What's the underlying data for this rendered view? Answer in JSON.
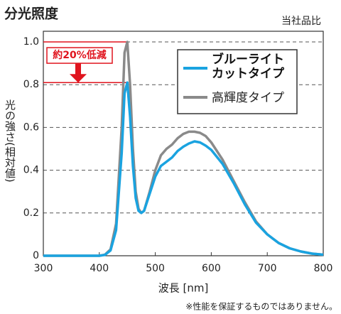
{
  "chart_data": {
    "type": "line",
    "title": "分光照度",
    "subtitle": "当社品比",
    "x_label": "波長 [nm]",
    "y_label": "光の強さ(相対値)",
    "annotation": "約20%低減",
    "footnote": "※性能を保証するものではありません。",
    "x": [
      300,
      400,
      410,
      420,
      430,
      440,
      445,
      450,
      455,
      460,
      465,
      470,
      475,
      480,
      490,
      500,
      510,
      520,
      530,
      540,
      550,
      560,
      570,
      580,
      590,
      600,
      620,
      640,
      660,
      680,
      700,
      720,
      740,
      760,
      780,
      800
    ],
    "series": [
      {
        "name": "ブルーライトカットタイプ",
        "color": "#1aa3e0",
        "values": [
          0,
          0,
          0.004,
          0.025,
          0.12,
          0.48,
          0.76,
          0.81,
          0.65,
          0.42,
          0.27,
          0.21,
          0.2,
          0.21,
          0.29,
          0.37,
          0.42,
          0.44,
          0.46,
          0.49,
          0.51,
          0.525,
          0.535,
          0.53,
          0.515,
          0.495,
          0.43,
          0.34,
          0.24,
          0.155,
          0.1,
          0.06,
          0.035,
          0.02,
          0.01,
          0.005
        ]
      },
      {
        "name": "高輝度タイプ",
        "color": "#8a8a8a",
        "values": [
          0,
          0,
          0.005,
          0.03,
          0.15,
          0.6,
          0.95,
          1.0,
          0.8,
          0.5,
          0.3,
          0.22,
          0.2,
          0.21,
          0.3,
          0.4,
          0.47,
          0.5,
          0.52,
          0.55,
          0.57,
          0.58,
          0.58,
          0.575,
          0.56,
          0.53,
          0.45,
          0.35,
          0.25,
          0.16,
          0.1,
          0.06,
          0.035,
          0.02,
          0.01,
          0.005
        ]
      }
    ],
    "xlim": [
      300,
      800
    ],
    "xticks": [
      300,
      400,
      500,
      600,
      700,
      800
    ],
    "ylim": [
      0,
      1.05
    ],
    "yticks": [
      0,
      0.2,
      0.4,
      0.6,
      0.8,
      {
        "value": 1,
        "label": "1.0"
      }
    ],
    "grid": true,
    "legend": "upper right"
  }
}
